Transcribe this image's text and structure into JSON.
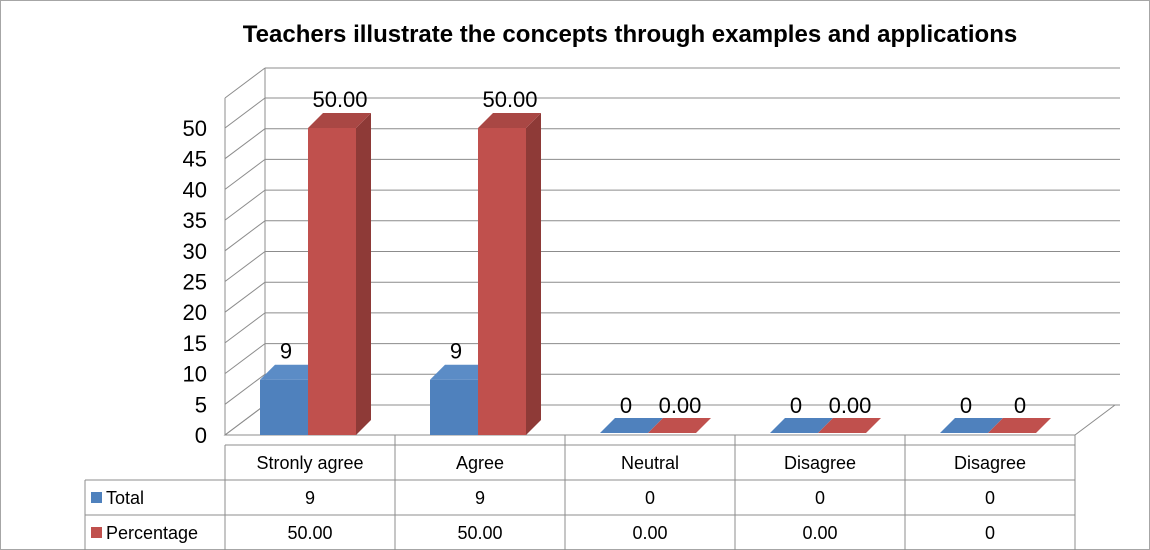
{
  "chart_data": {
    "type": "bar",
    "title": "Teachers illustrate the concepts through examples and applications",
    "categories": [
      "Stronly agree",
      "Agree",
      "Neutral",
      "Disagree",
      "Disagree"
    ],
    "series": [
      {
        "name": "Total",
        "values": [
          9,
          9,
          0,
          0,
          0
        ],
        "labels": [
          "9",
          "9",
          "0",
          "0",
          "0"
        ],
        "color": "#4F81BD"
      },
      {
        "name": "Percentage",
        "values": [
          50,
          50,
          0,
          0,
          0
        ],
        "labels": [
          "50.00",
          "50.00",
          "0.00",
          "0.00",
          "0"
        ],
        "color": "#C0504D"
      }
    ],
    "yticks": [
      "0",
      "5",
      "10",
      "15",
      "20",
      "25",
      "30",
      "35",
      "40",
      "45",
      "50"
    ],
    "ylim": [
      0,
      50
    ],
    "grid": true,
    "legend": "data-table",
    "style": "3d-clustered-column"
  },
  "colors": {
    "total_front": "#4F81BD",
    "total_side": "#385D8A",
    "total_top": "#5B8CC6",
    "pct_front": "#C0504D",
    "pct_side": "#8E3A37",
    "pct_top": "#A94744"
  }
}
